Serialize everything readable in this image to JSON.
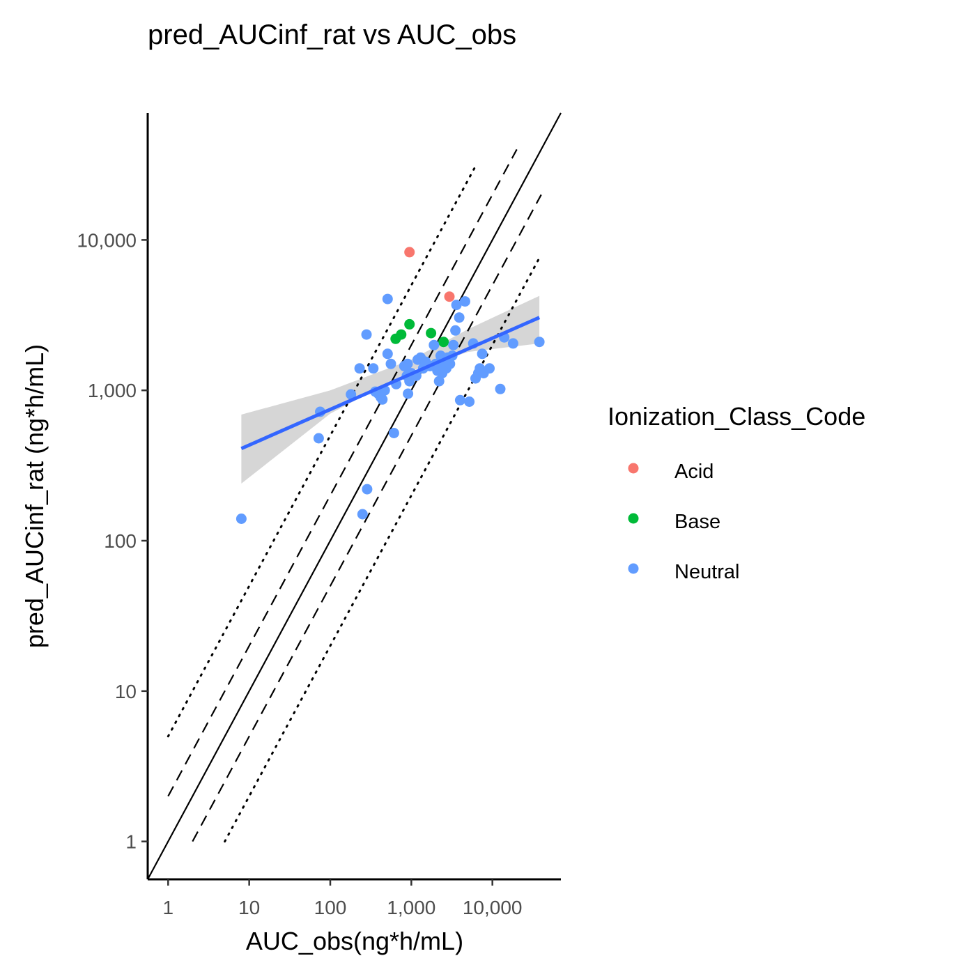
{
  "chart_data": {
    "type": "scatter",
    "title": "pred_AUCinf_rat vs AUC_obs",
    "xlabel": "AUC_obs(ng*h/mL)",
    "ylabel": "pred_AUCinf_rat (ng*h/mL)",
    "x_scale": "log10",
    "y_scale": "log10",
    "xlim": [
      0.56,
      70000
    ],
    "ylim": [
      0.56,
      70000
    ],
    "x_ticks": [
      1,
      10,
      100,
      1000,
      10000
    ],
    "x_tick_labels": [
      "1",
      "10",
      "100",
      "1,000",
      "10,000"
    ],
    "y_ticks": [
      1,
      10,
      100,
      1000,
      10000
    ],
    "y_tick_labels": [
      "1",
      "10",
      "100",
      "1,000",
      "10,000"
    ],
    "grid": false,
    "legend": {
      "title": "Ionization_Class_Code",
      "position": "right",
      "entries": [
        {
          "label": "Acid",
          "color": "#F8766D"
        },
        {
          "label": "Base",
          "color": "#00BA38"
        },
        {
          "label": "Neutral",
          "color": "#619CFF"
        }
      ]
    },
    "series": [
      {
        "name": "Acid",
        "color": "#F8766D",
        "points": [
          [
            950,
            8300
          ],
          [
            2950,
            4200
          ]
        ]
      },
      {
        "name": "Base",
        "color": "#00BA38",
        "points": [
          [
            640,
            2200
          ],
          [
            750,
            2350
          ],
          [
            950,
            2750
          ],
          [
            1750,
            2400
          ],
          [
            2500,
            2100
          ]
        ]
      },
      {
        "name": "Neutral",
        "color": "#619CFF",
        "points": [
          [
            8,
            140
          ],
          [
            75,
            720
          ],
          [
            72,
            480
          ],
          [
            180,
            940
          ],
          [
            230,
            1400
          ],
          [
            280,
            2350
          ],
          [
            250,
            150
          ],
          [
            285,
            220
          ],
          [
            340,
            1400
          ],
          [
            360,
            980
          ],
          [
            390,
            950
          ],
          [
            420,
            900
          ],
          [
            440,
            870
          ],
          [
            470,
            1000
          ],
          [
            510,
            1750
          ],
          [
            510,
            4050
          ],
          [
            560,
            1500
          ],
          [
            610,
            520
          ],
          [
            650,
            1100
          ],
          [
            820,
            1450
          ],
          [
            880,
            1250
          ],
          [
            900,
            1500
          ],
          [
            910,
            950
          ],
          [
            950,
            1150
          ],
          [
            1000,
            1300
          ],
          [
            1150,
            1250
          ],
          [
            1200,
            1600
          ],
          [
            1300,
            1650
          ],
          [
            1400,
            1400
          ],
          [
            1500,
            1550
          ],
          [
            1700,
            1450
          ],
          [
            1900,
            2000
          ],
          [
            2000,
            1500
          ],
          [
            2100,
            1350
          ],
          [
            2200,
            1150
          ],
          [
            2300,
            1700
          ],
          [
            2400,
            1300
          ],
          [
            2500,
            1450
          ],
          [
            2600,
            1550
          ],
          [
            2700,
            1400
          ],
          [
            2800,
            1650
          ],
          [
            3000,
            1500
          ],
          [
            3200,
            1700
          ],
          [
            3300,
            2000
          ],
          [
            3500,
            2500
          ],
          [
            3600,
            3700
          ],
          [
            3900,
            3050
          ],
          [
            4000,
            860
          ],
          [
            4600,
            3900
          ],
          [
            5200,
            840
          ],
          [
            5800,
            2050
          ],
          [
            6200,
            1200
          ],
          [
            6700,
            1300
          ],
          [
            7000,
            1400
          ],
          [
            7500,
            1750
          ],
          [
            7800,
            1300
          ],
          [
            9200,
            1400
          ],
          [
            12500,
            1020
          ],
          [
            14000,
            2250
          ],
          [
            18000,
            2050
          ],
          [
            38000,
            2100
          ]
        ]
      }
    ],
    "reference_lines": [
      {
        "name": "identity",
        "style": "solid",
        "factor": 1,
        "x_range": [
          0.56,
          70000
        ]
      },
      {
        "name": "2-fold upper",
        "style": "dashed",
        "factor": 2,
        "x_range": [
          1,
          20000
        ]
      },
      {
        "name": "2-fold lower",
        "style": "dashed",
        "factor": 0.5,
        "x_range": [
          2,
          40000
        ]
      },
      {
        "name": "5-fold upper",
        "style": "dotted",
        "factor": 5,
        "x_range": [
          1,
          6500
        ]
      },
      {
        "name": "5-fold lower",
        "style": "dotted",
        "factor": 0.2,
        "x_range": [
          5,
          38000
        ]
      }
    ],
    "trend_line": {
      "method": "lm",
      "color": "#3366FF",
      "x_range": [
        8,
        38000
      ],
      "y_at_x_start": 410,
      "y_at_x_end": 3050,
      "ci_band": [
        {
          "x": 8,
          "lower": 240,
          "upper": 690
        },
        {
          "x": 100,
          "lower": 700,
          "upper": 1000
        },
        {
          "x": 1000,
          "lower": 1350,
          "upper": 1600
        },
        {
          "x": 5000,
          "lower": 1800,
          "upper": 2550
        },
        {
          "x": 38000,
          "lower": 2050,
          "upper": 4250
        }
      ]
    }
  }
}
